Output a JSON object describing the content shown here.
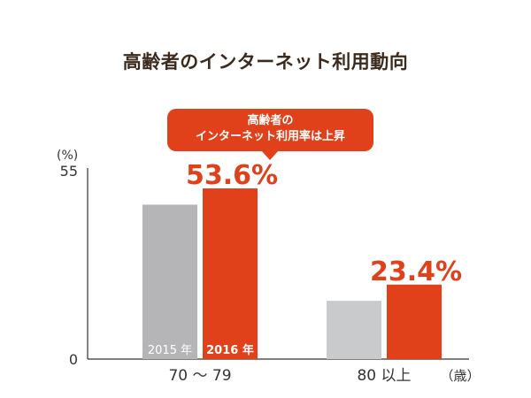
{
  "title": "高齢者のインターネット利用動向",
  "callout": {
    "line1": "高齢者の",
    "line2": "インターネット利用率は上昇"
  },
  "colors": {
    "series_2015": "#b5b5b8",
    "series_2015_light": "#c9cacc",
    "series_2016": "#e0401a",
    "text_dark": "#3b2a1e",
    "axis": "#333333"
  },
  "chart_data": {
    "type": "bar",
    "categories": [
      "70 ～ 79",
      "80 以上"
    ],
    "series": [
      {
        "name": "2015 年",
        "values": [
          48.5,
          18.3
        ]
      },
      {
        "name": "2016 年",
        "values": [
          53.6,
          23.4
        ]
      }
    ],
    "data_labels": [
      "53.6%",
      "23.4%"
    ],
    "ylim": [
      0,
      55
    ],
    "yticks": [
      "0",
      "55"
    ],
    "ylabel_unit": "(%)",
    "xlabel_unit": "（歳）",
    "legend_in_bars": true,
    "grid": false
  }
}
